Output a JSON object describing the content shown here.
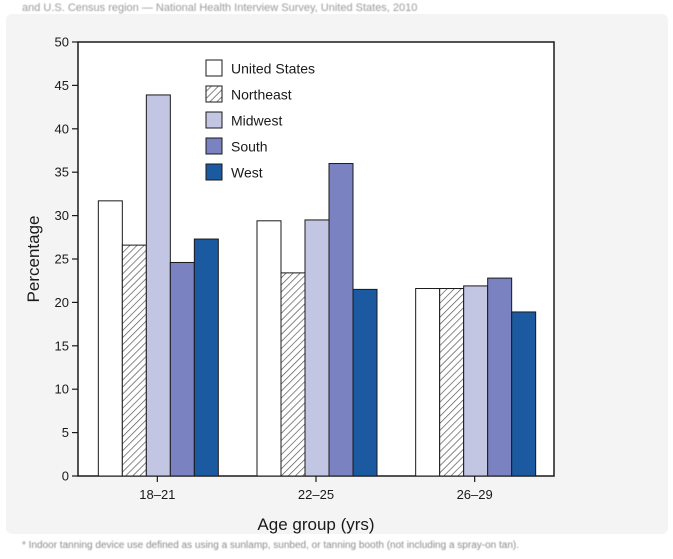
{
  "page": {
    "top_caption": "and U.S. Census region — National Health Interview Survey, United States, 2010",
    "footnote": "* Indoor tanning device use defined as using a sunlamp, sunbed, or tanning booth (not including a spray-on tan)."
  },
  "chart_data": {
    "type": "bar",
    "title": "",
    "xlabel": "Age group (yrs)",
    "ylabel": "Percentage",
    "ylim": [
      0,
      50
    ],
    "yticks": [
      0,
      5,
      10,
      15,
      20,
      25,
      30,
      35,
      40,
      45,
      50
    ],
    "categories": [
      "18–21",
      "22–25",
      "26–29"
    ],
    "legend_position": "top-center",
    "grid": false,
    "series": [
      {
        "name": "United States",
        "color": "#ffffff",
        "pattern": "none",
        "values": [
          31.7,
          29.4,
          21.6
        ]
      },
      {
        "name": "Northeast",
        "color": "#ffffff",
        "pattern": "hatch",
        "values": [
          26.6,
          23.4,
          21.6
        ]
      },
      {
        "name": "Midwest",
        "color": "#c3c6e3",
        "pattern": "none",
        "values": [
          43.9,
          29.5,
          21.9
        ]
      },
      {
        "name": "South",
        "color": "#7b82c2",
        "pattern": "none",
        "values": [
          24.6,
          36.0,
          22.8
        ]
      },
      {
        "name": "West",
        "color": "#1b5aa0",
        "pattern": "none",
        "values": [
          27.3,
          21.5,
          18.9
        ]
      }
    ]
  }
}
